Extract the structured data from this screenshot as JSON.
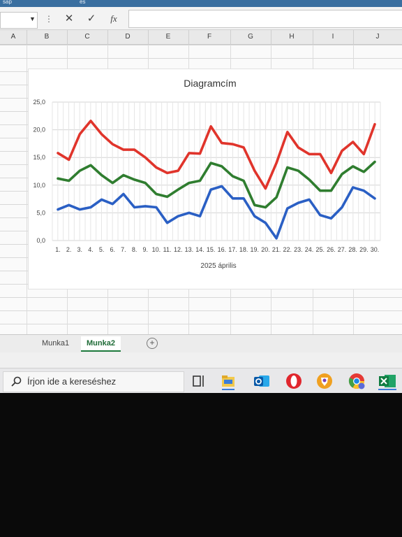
{
  "window": {
    "top_strip": [
      "sap",
      "és"
    ]
  },
  "formula_bar": {
    "cancel_glyph": "✕",
    "enter_glyph": "✓",
    "function_label": "fx"
  },
  "columns": [
    "A",
    "B",
    "C",
    "D",
    "E",
    "F",
    "G",
    "H",
    "I",
    "J"
  ],
  "chart_data": {
    "type": "line",
    "title": "Diagramcím",
    "xlabel": "2025 április",
    "ylabel": "",
    "categories": [
      "1.",
      "2.",
      "3.",
      "4.",
      "5.",
      "6.",
      "7.",
      "8.",
      "9.",
      "10.",
      "11.",
      "12.",
      "13.",
      "14.",
      "15.",
      "16.",
      "17.",
      "18.",
      "19.",
      "20.",
      "21.",
      "22.",
      "23.",
      "24.",
      "25.",
      "26.",
      "27.",
      "28.",
      "29.",
      "30."
    ],
    "ylim": [
      0,
      25
    ],
    "yticks": [
      "0,0",
      "5,0",
      "10,0",
      "15,0",
      "20,0",
      "25,0"
    ],
    "grid": true,
    "series": [
      {
        "color": "#e0342b",
        "values": [
          15.8,
          14.6,
          19.2,
          21.6,
          19.2,
          17.4,
          16.4,
          16.4,
          15.0,
          13.2,
          12.2,
          12.6,
          15.8,
          15.7,
          20.6,
          17.6,
          17.4,
          16.8,
          12.6,
          9.4,
          14.0,
          19.6,
          16.8,
          15.6,
          15.6,
          12.2,
          16.2,
          17.8,
          15.6,
          21.0
        ]
      },
      {
        "color": "#2f7d2f",
        "values": [
          11.2,
          10.8,
          12.6,
          13.6,
          11.8,
          10.4,
          11.8,
          11.0,
          10.4,
          8.4,
          7.9,
          9.2,
          10.4,
          10.8,
          14.0,
          13.4,
          11.6,
          10.8,
          6.4,
          6.0,
          7.8,
          13.2,
          12.6,
          11.0,
          9.0,
          9.0,
          12.0,
          13.4,
          12.4,
          14.2
        ]
      },
      {
        "color": "#2a5fc4",
        "values": [
          5.6,
          6.4,
          5.6,
          6.0,
          7.4,
          6.6,
          8.4,
          6.0,
          6.2,
          6.0,
          3.2,
          4.4,
          5.0,
          4.4,
          9.2,
          9.8,
          7.6,
          7.6,
          4.4,
          3.2,
          0.4,
          5.8,
          6.8,
          7.4,
          4.6,
          4.0,
          6.0,
          9.6,
          9.0,
          7.6
        ]
      }
    ]
  },
  "sheet_tabs": {
    "tab1": "Munka1",
    "tab2": "Munka2",
    "add": "+"
  },
  "taskbar": {
    "search_placeholder": "Írjon ide a kereséshez",
    "icons": [
      "task-view-icon",
      "file-explorer-icon",
      "outlook-icon",
      "opera-icon",
      "brave-icon",
      "chrome-icon",
      "excel-icon"
    ]
  }
}
